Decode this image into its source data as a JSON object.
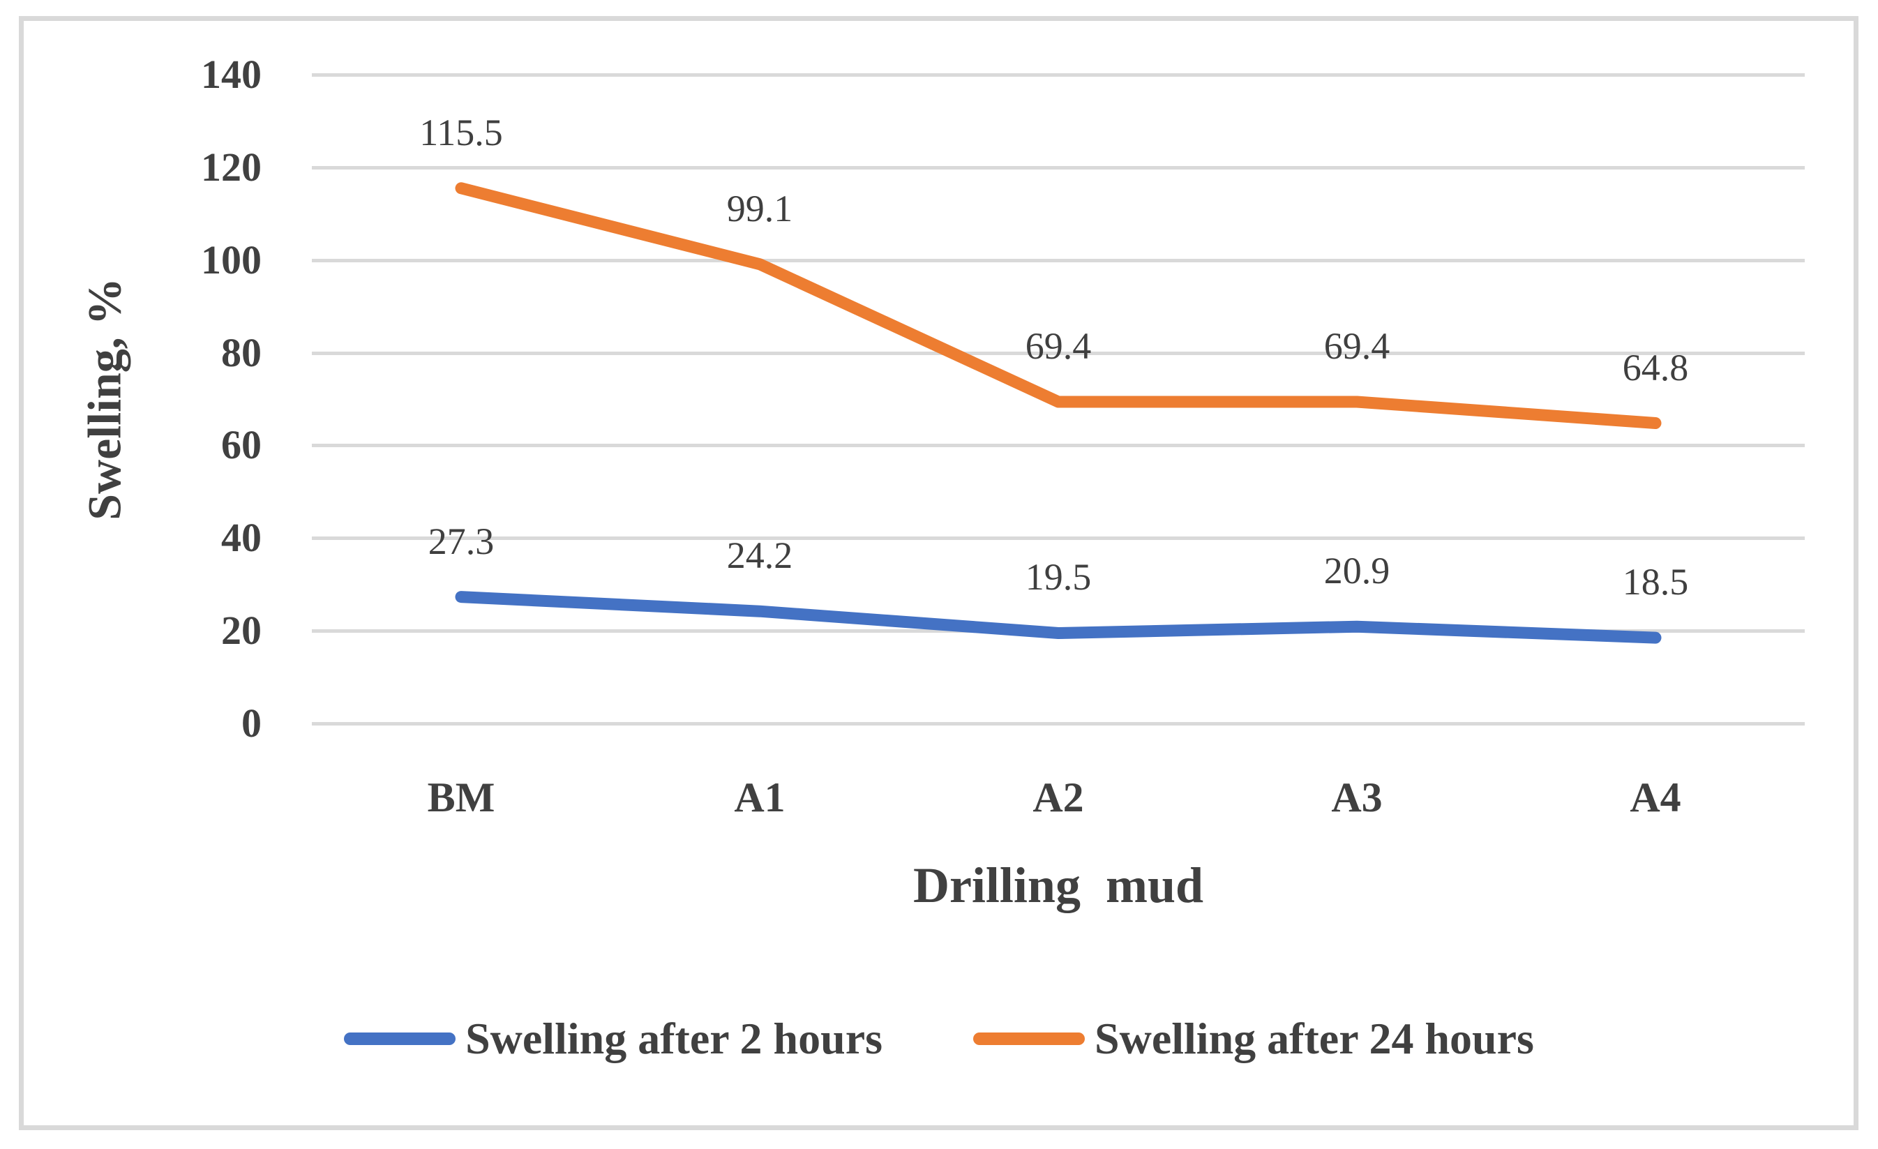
{
  "figure": {
    "background_color": "#ffffff",
    "frame_border_color": "#d9d9d9",
    "gridline_color": "#d9d9d9",
    "text_color": "#404040"
  },
  "chart_data": {
    "type": "line",
    "categories": [
      "BM",
      "A1",
      "A2",
      "A3",
      "A4"
    ],
    "series": [
      {
        "name": "Swelling after 2 hours",
        "color": "#4472C4",
        "values": [
          27.3,
          24.2,
          19.5,
          20.9,
          18.5
        ],
        "labels": [
          "27.3",
          "24.2",
          "19.5",
          "20.9",
          "18.5"
        ]
      },
      {
        "name": "Swelling after 24 hours",
        "color": "#ED7D31",
        "values": [
          115.5,
          99.1,
          69.4,
          69.4,
          64.8
        ],
        "labels": [
          "115.5",
          "99.1",
          "69.4",
          "69.4",
          "64.8"
        ]
      }
    ],
    "title": "",
    "xlabel": "Drilling mud",
    "ylabel": "Swelling, %",
    "ylim": [
      0,
      140
    ],
    "yticks": [
      0,
      20,
      40,
      60,
      80,
      100,
      120,
      140
    ],
    "grid": true,
    "legend_position": "bottom",
    "data_labels": true
  }
}
